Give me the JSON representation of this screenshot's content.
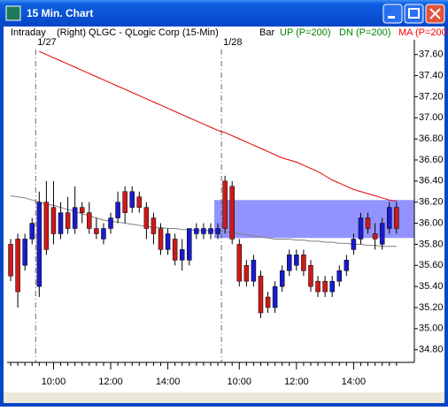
{
  "window": {
    "title": "15 Min. Chart"
  },
  "header": {
    "mode": "Intraday",
    "symbol": "(Right) QLGC - QLogic Corp (15-Min)",
    "legend": [
      {
        "text": "Bar",
        "color": "#000000"
      },
      {
        "text": "UP (P=200)",
        "color": "#008000"
      },
      {
        "text": "DN (P=200)",
        "color": "#008000"
      },
      {
        "text": "MA (P=200",
        "color": "#ff0000"
      }
    ]
  },
  "chart_data": {
    "type": "candlestick",
    "categories": [
      null,
      null,
      null,
      null,
      null,
      null,
      "10:00",
      null,
      null,
      null,
      null,
      null,
      null,
      null,
      "12:00",
      null,
      null,
      null,
      null,
      null,
      null,
      null,
      "14:00",
      null,
      null,
      null,
      null,
      null,
      null,
      null,
      null,
      null,
      "10:00",
      null,
      null,
      null,
      null,
      null,
      null,
      null,
      "12:00",
      null,
      null,
      null,
      null,
      null,
      null,
      null,
      "14:00",
      null,
      null,
      null,
      null,
      null,
      null
    ],
    "open": [
      35.8,
      35.85,
      35.6,
      35.85,
      35.4,
      36.2,
      36.15,
      35.9,
      36.1,
      35.95,
      36.15,
      36.1,
      35.95,
      35.85,
      35.95,
      36.05,
      36.3,
      36.15,
      36.25,
      36.15,
      36.05,
      35.95,
      35.75,
      35.85,
      35.65,
      35.65,
      35.9,
      35.9,
      35.9,
      35.9,
      36.4,
      36.35,
      35.8,
      35.6,
      35.45,
      35.5,
      35.3,
      35.2,
      35.4,
      35.55,
      35.6,
      35.7,
      35.6,
      35.45,
      35.45,
      35.35,
      35.45,
      35.55,
      35.75,
      35.85,
      36.05,
      35.9,
      35.8,
      35.95,
      36.15
    ],
    "high": [
      35.85,
      35.9,
      35.9,
      36.05,
      36.3,
      36.4,
      36.4,
      36.2,
      36.25,
      36.35,
      36.2,
      36.2,
      36.05,
      36.0,
      36.1,
      36.3,
      36.35,
      36.35,
      36.3,
      36.2,
      36.1,
      36.0,
      35.95,
      35.9,
      35.85,
      35.95,
      36.0,
      36.0,
      36.0,
      36.0,
      36.45,
      36.4,
      35.85,
      35.65,
      35.7,
      35.55,
      35.35,
      35.45,
      35.6,
      35.75,
      35.75,
      35.75,
      35.65,
      35.5,
      35.5,
      35.5,
      35.6,
      35.7,
      35.9,
      36.1,
      36.1,
      36.0,
      36.05,
      36.2,
      36.2
    ],
    "low": [
      35.45,
      35.2,
      35.55,
      35.8,
      35.3,
      35.7,
      35.8,
      35.85,
      35.9,
      35.9,
      36.0,
      35.9,
      35.85,
      35.8,
      35.9,
      36.0,
      36.0,
      36.1,
      36.1,
      35.85,
      35.8,
      35.7,
      35.7,
      35.6,
      35.55,
      35.6,
      35.85,
      35.85,
      35.85,
      35.85,
      35.9,
      35.8,
      35.4,
      35.4,
      35.4,
      35.1,
      35.15,
      35.15,
      35.35,
      35.5,
      35.55,
      35.5,
      35.35,
      35.3,
      35.3,
      35.3,
      35.4,
      35.5,
      35.7,
      35.8,
      35.9,
      35.75,
      35.75,
      35.9,
      35.9
    ],
    "close": [
      35.5,
      35.35,
      35.85,
      36.0,
      36.2,
      35.75,
      35.9,
      36.1,
      35.95,
      36.15,
      36.1,
      35.95,
      35.9,
      35.95,
      36.05,
      36.2,
      36.1,
      36.3,
      36.15,
      35.95,
      35.9,
      35.75,
      35.9,
      35.65,
      35.75,
      35.95,
      35.95,
      35.95,
      35.95,
      35.95,
      35.95,
      35.85,
      35.45,
      35.45,
      35.65,
      35.15,
      35.2,
      35.4,
      35.55,
      35.7,
      35.7,
      35.55,
      35.4,
      35.35,
      35.35,
      35.45,
      35.55,
      35.65,
      35.85,
      36.05,
      35.95,
      35.85,
      36.0,
      36.15,
      35.95
    ],
    "up_color": "#1a1acc",
    "down_color": "#cc1a1a",
    "lines": [
      {
        "color": "#808080",
        "values": [
          36.26,
          36.25,
          36.24,
          36.22,
          36.2,
          36.18,
          36.17,
          36.15,
          36.13,
          36.11,
          36.09,
          36.07,
          36.05,
          36.03,
          36.02,
          36.01,
          36.0,
          35.99,
          35.98,
          35.97,
          35.96,
          35.96,
          35.95,
          35.95,
          35.94,
          35.94,
          35.93,
          35.93,
          35.93,
          35.93,
          35.92,
          35.91,
          35.9,
          35.89,
          35.88,
          35.87,
          35.86,
          35.85,
          35.85,
          35.85,
          35.84,
          35.84,
          35.83,
          35.83,
          35.82,
          35.82,
          35.81,
          35.81,
          35.8,
          35.8,
          35.79,
          35.79,
          35.78,
          35.78,
          35.78
        ]
      },
      {
        "color": "#dd0000",
        "values": [
          null,
          null,
          null,
          null,
          37.63,
          37.6,
          37.57,
          37.54,
          37.51,
          37.48,
          37.45,
          37.42,
          37.39,
          37.36,
          37.33,
          37.3,
          37.27,
          37.24,
          37.21,
          37.18,
          37.15,
          37.12,
          37.09,
          37.06,
          37.03,
          37.0,
          36.97,
          36.94,
          36.91,
          36.88,
          36.86,
          36.83,
          36.8,
          36.77,
          36.74,
          36.71,
          36.68,
          36.65,
          36.62,
          36.6,
          36.58,
          36.55,
          36.52,
          36.49,
          36.45,
          36.41,
          36.38,
          36.35,
          36.32,
          36.3,
          36.28,
          36.26,
          36.24,
          36.22,
          36.21
        ]
      }
    ],
    "dividers": [
      {
        "value": 3.5,
        "label": "1/27"
      },
      {
        "value": 29.5,
        "label": "1/28"
      }
    ],
    "band": {
      "start": 28.5,
      "low": 35.86,
      "high": 36.22,
      "color": "#8080ff"
    },
    "xlim": [
      -0.5,
      56.5
    ],
    "ylim": [
      34.68,
      37.74
    ],
    "yticks": [
      {
        "value": 34.8,
        "label": "34.80"
      },
      {
        "value": 35.0,
        "label": "35.00"
      },
      {
        "value": 35.2,
        "label": "35.20"
      },
      {
        "value": 35.4,
        "label": "35.40"
      },
      {
        "value": 35.6,
        "label": "35.60"
      },
      {
        "value": 35.8,
        "label": "35.80"
      },
      {
        "value": 36.0,
        "label": "36.00"
      },
      {
        "value": 36.2,
        "label": "36.20"
      },
      {
        "value": 36.4,
        "label": "36.40"
      },
      {
        "value": 36.6,
        "label": "36.60"
      },
      {
        "value": 36.8,
        "label": "36.80"
      },
      {
        "value": 37.0,
        "label": "37.00"
      },
      {
        "value": 37.2,
        "label": "37.20"
      },
      {
        "value": 37.4,
        "label": "37.40"
      },
      {
        "value": 37.6,
        "label": "37.60"
      }
    ]
  }
}
